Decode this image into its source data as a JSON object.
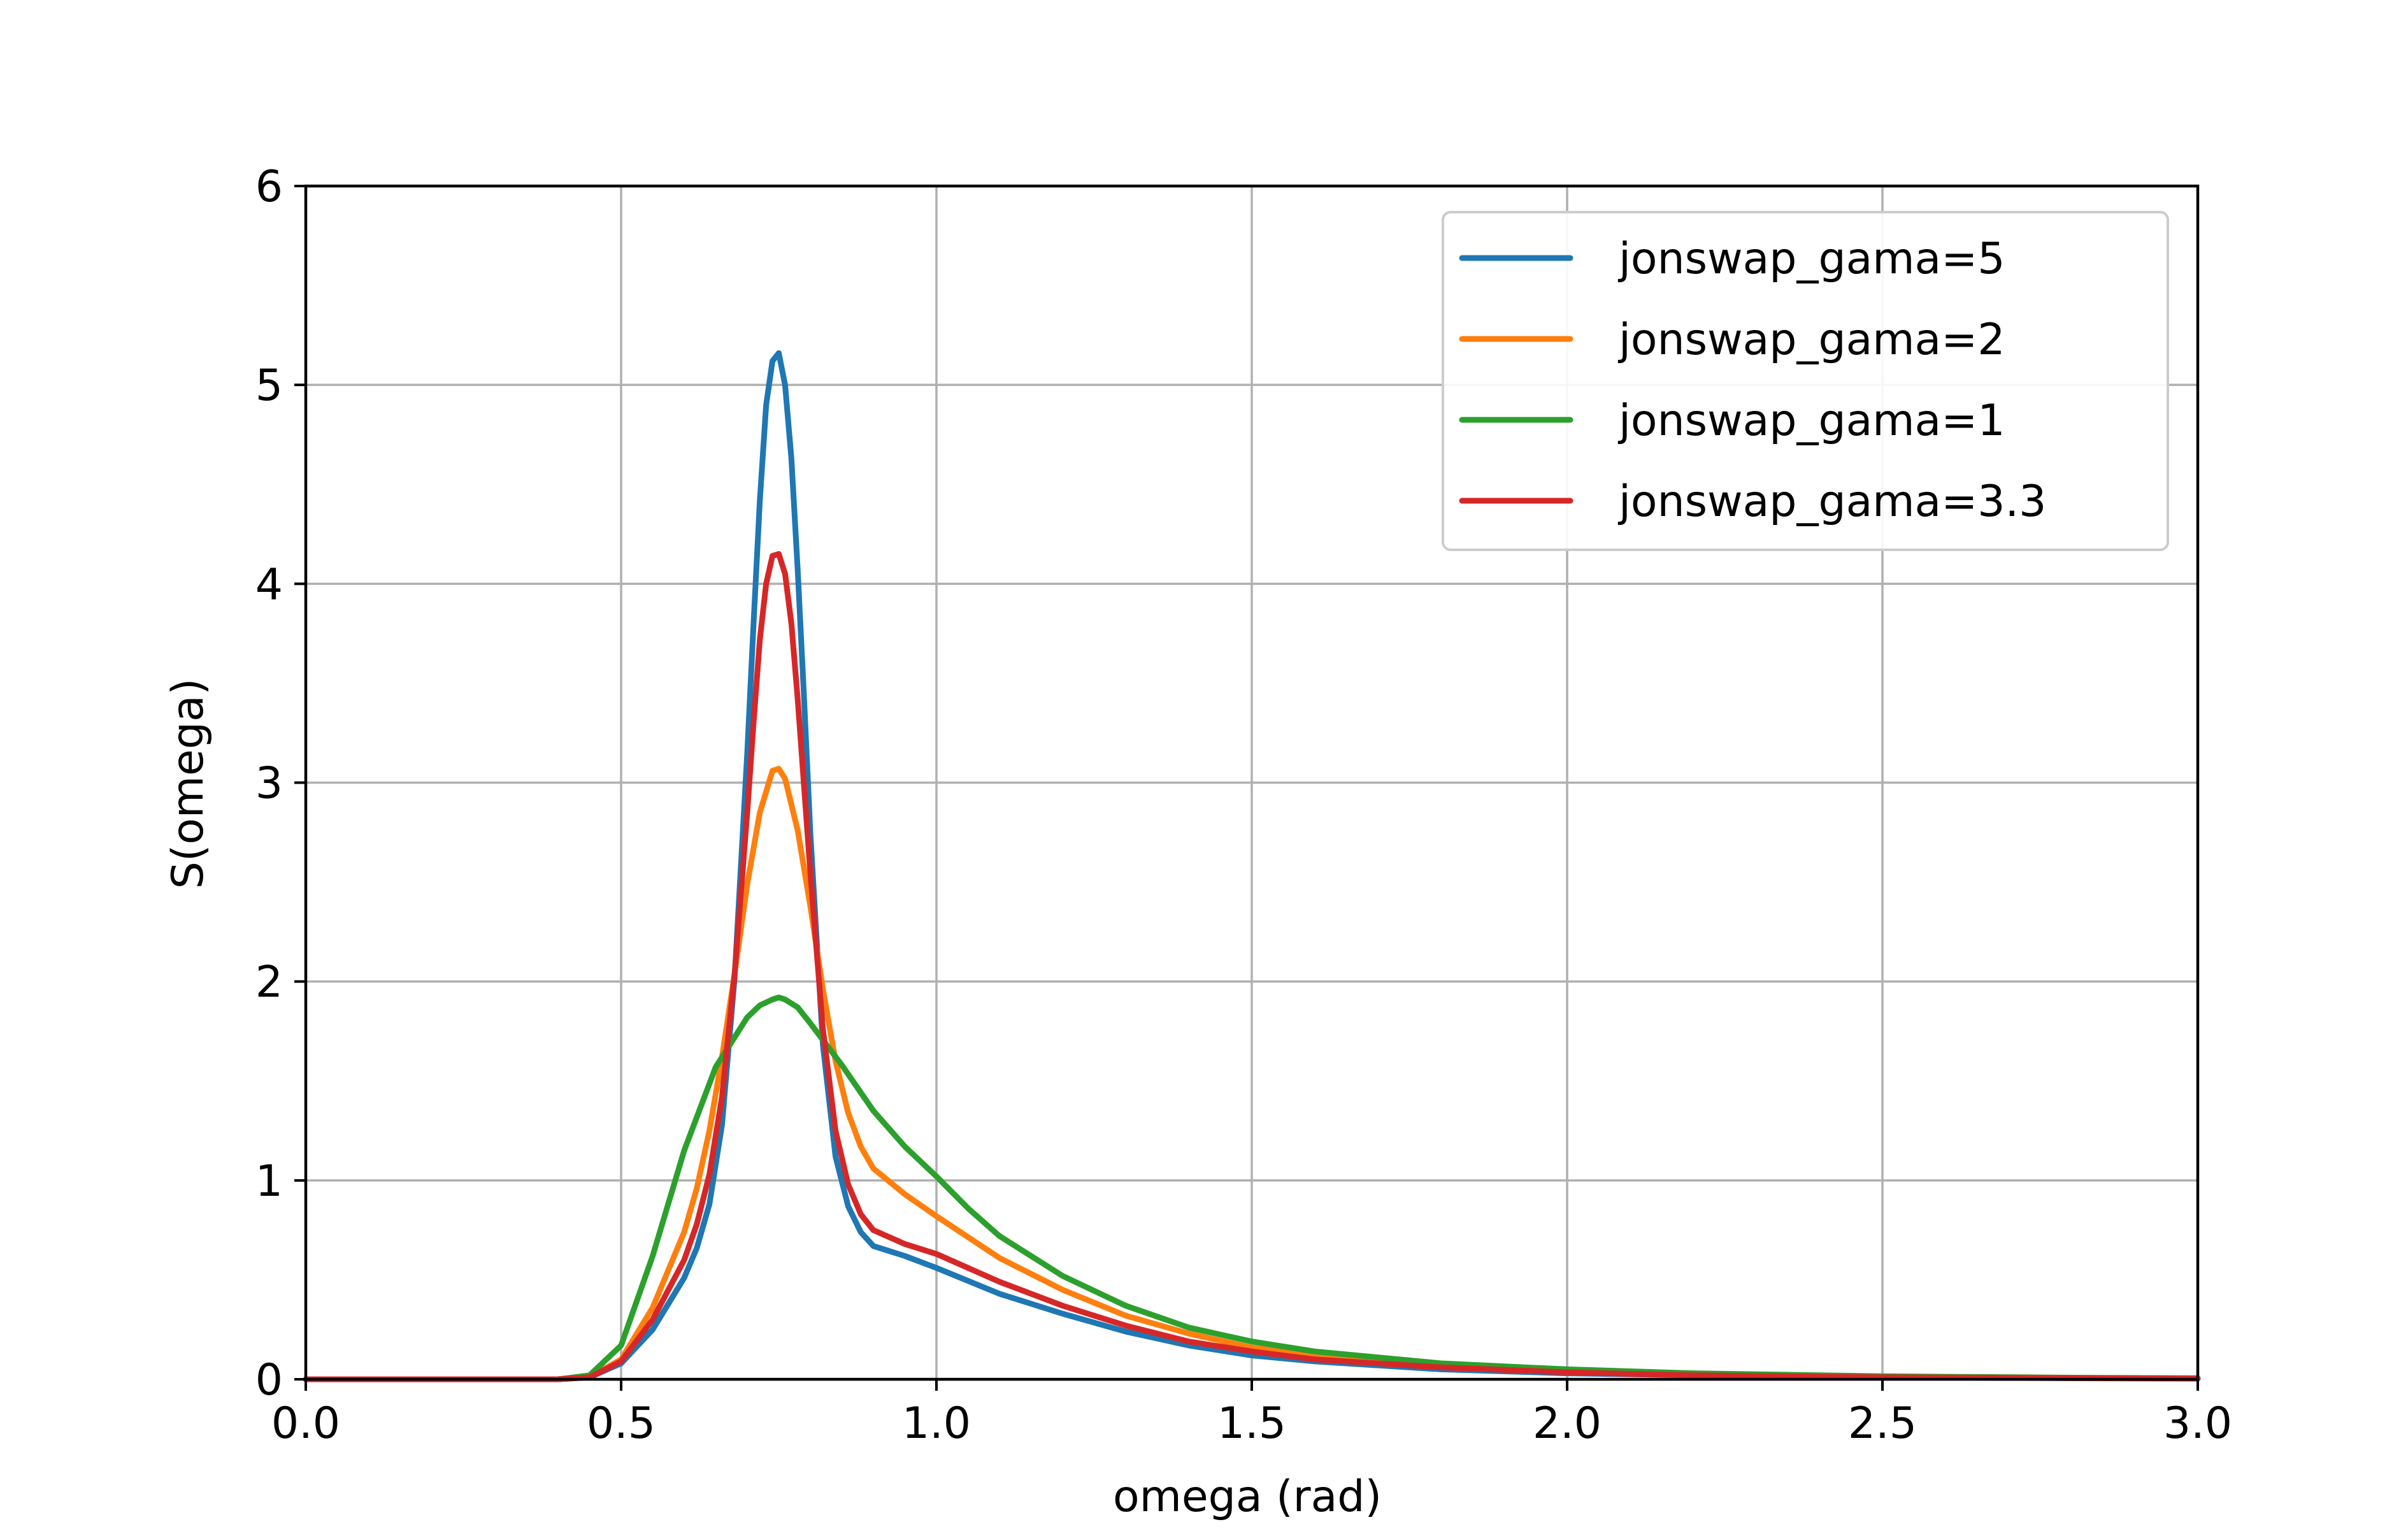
{
  "chart_data": {
    "type": "line",
    "title": "",
    "xlabel": "omega (rad)",
    "ylabel": "S(omega)",
    "xlim": [
      0,
      3
    ],
    "ylim": [
      0,
      6
    ],
    "x_ticks": [
      0,
      0.5,
      1,
      1.5,
      2,
      2.5,
      3
    ],
    "x_tick_labels": [
      "0.0",
      "0.5",
      "1.0",
      "1.5",
      "2.0",
      "2.5",
      "3.0"
    ],
    "y_ticks": [
      0,
      1,
      2,
      3,
      4,
      5,
      6
    ],
    "y_tick_labels": [
      "0",
      "1",
      "2",
      "3",
      "4",
      "5",
      "6"
    ],
    "grid": true,
    "legend_position": "top-right",
    "series": [
      {
        "name": "jonswap_gama=5",
        "color": "#1f77b4",
        "x": [
          0,
          0.1,
          0.2,
          0.3,
          0.4,
          0.45,
          0.5,
          0.55,
          0.6,
          0.62,
          0.64,
          0.66,
          0.68,
          0.7,
          0.71,
          0.72,
          0.73,
          0.74,
          0.75,
          0.76,
          0.77,
          0.78,
          0.79,
          0.8,
          0.82,
          0.84,
          0.86,
          0.88,
          0.9,
          0.95,
          1.0,
          1.1,
          1.2,
          1.3,
          1.4,
          1.5,
          1.6,
          1.8,
          2.0,
          2.2,
          2.5,
          2.8,
          3.0
        ],
        "y": [
          0,
          0,
          0,
          0,
          0,
          0.01,
          0.08,
          0.25,
          0.51,
          0.66,
          0.88,
          1.28,
          2.02,
          3.15,
          3.8,
          4.42,
          4.9,
          5.12,
          5.16,
          5.0,
          4.63,
          4.07,
          3.43,
          2.75,
          1.68,
          1.12,
          0.87,
          0.74,
          0.67,
          0.62,
          0.56,
          0.43,
          0.33,
          0.24,
          0.17,
          0.12,
          0.09,
          0.05,
          0.03,
          0.02,
          0.01,
          0.005,
          0.003
        ]
      },
      {
        "name": "jonswap_gama=2",
        "color": "#ff7f0e",
        "x": [
          0,
          0.1,
          0.2,
          0.3,
          0.4,
          0.45,
          0.5,
          0.55,
          0.6,
          0.62,
          0.64,
          0.66,
          0.68,
          0.7,
          0.72,
          0.74,
          0.75,
          0.76,
          0.78,
          0.8,
          0.82,
          0.84,
          0.86,
          0.88,
          0.9,
          0.95,
          1.0,
          1.1,
          1.2,
          1.3,
          1.4,
          1.5,
          1.6,
          1.8,
          2.0,
          2.2,
          2.5,
          2.8,
          3.0
        ],
        "y": [
          0,
          0,
          0,
          0,
          0,
          0.01,
          0.1,
          0.36,
          0.74,
          0.96,
          1.25,
          1.62,
          2.04,
          2.49,
          2.85,
          3.06,
          3.07,
          3.02,
          2.76,
          2.38,
          1.96,
          1.6,
          1.34,
          1.17,
          1.06,
          0.93,
          0.82,
          0.61,
          0.45,
          0.32,
          0.23,
          0.16,
          0.12,
          0.07,
          0.04,
          0.02,
          0.01,
          0.006,
          0.004
        ]
      },
      {
        "name": "jonswap_gama=1",
        "color": "#2ca02c",
        "x": [
          0,
          0.1,
          0.2,
          0.3,
          0.4,
          0.45,
          0.5,
          0.55,
          0.6,
          0.65,
          0.7,
          0.72,
          0.74,
          0.75,
          0.76,
          0.78,
          0.8,
          0.85,
          0.9,
          0.95,
          1.0,
          1.05,
          1.1,
          1.2,
          1.3,
          1.4,
          1.5,
          1.6,
          1.8,
          2.0,
          2.2,
          2.5,
          2.8,
          3.0
        ],
        "y": [
          0,
          0,
          0,
          0,
          0,
          0.02,
          0.17,
          0.62,
          1.15,
          1.57,
          1.82,
          1.88,
          1.91,
          1.92,
          1.91,
          1.87,
          1.79,
          1.58,
          1.35,
          1.17,
          1.02,
          0.86,
          0.72,
          0.52,
          0.37,
          0.26,
          0.19,
          0.14,
          0.08,
          0.05,
          0.03,
          0.015,
          0.008,
          0.005
        ]
      },
      {
        "name": "jonswap_gama=3.3",
        "color": "#d62728",
        "x": [
          0,
          0.1,
          0.2,
          0.3,
          0.4,
          0.45,
          0.5,
          0.55,
          0.6,
          0.62,
          0.64,
          0.66,
          0.68,
          0.7,
          0.71,
          0.72,
          0.73,
          0.74,
          0.75,
          0.76,
          0.77,
          0.78,
          0.8,
          0.82,
          0.84,
          0.86,
          0.88,
          0.9,
          0.95,
          1.0,
          1.1,
          1.2,
          1.3,
          1.4,
          1.5,
          1.6,
          1.8,
          2.0,
          2.2,
          2.5,
          2.8,
          3.0
        ],
        "y": [
          0,
          0,
          0,
          0,
          0,
          0.01,
          0.09,
          0.3,
          0.6,
          0.78,
          1.03,
          1.42,
          2.04,
          2.85,
          3.3,
          3.72,
          4.0,
          4.14,
          4.15,
          4.05,
          3.8,
          3.42,
          2.55,
          1.76,
          1.25,
          0.98,
          0.83,
          0.75,
          0.68,
          0.63,
          0.49,
          0.37,
          0.27,
          0.19,
          0.14,
          0.1,
          0.06,
          0.035,
          0.02,
          0.01,
          0.006,
          0.004
        ]
      }
    ]
  }
}
